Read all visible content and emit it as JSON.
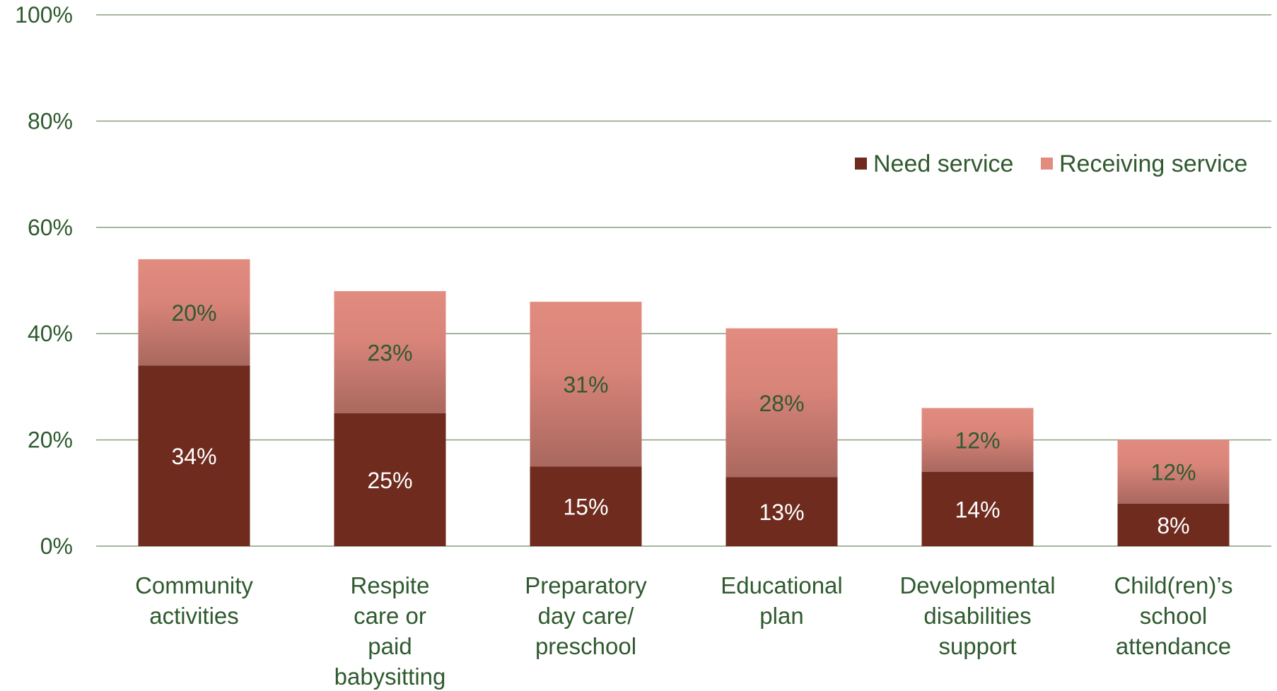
{
  "chart_data": {
    "type": "bar",
    "stacked": true,
    "categories": [
      [
        "Community",
        "activities"
      ],
      [
        "Respite",
        "care or",
        "paid",
        "babysitting"
      ],
      [
        "Preparatory",
        "day care/",
        "preschool"
      ],
      [
        "Educational",
        "plan"
      ],
      [
        "Developmental",
        "disabilities",
        "support"
      ],
      [
        "Child(ren)’s",
        "school",
        "attendance"
      ]
    ],
    "series": [
      {
        "name": "Need service",
        "values": [
          34,
          25,
          15,
          13,
          14,
          8
        ],
        "labels": [
          "34%",
          "25%",
          "15%",
          "13%",
          "14%",
          "8%"
        ],
        "color": "#6e2b1e",
        "label_color": "#ffffff"
      },
      {
        "name": "Receiving service",
        "values": [
          20,
          23,
          31,
          28,
          12,
          12
        ],
        "labels": [
          "20%",
          "23%",
          "31%",
          "28%",
          "12%",
          "12%"
        ],
        "color": "#e28c80",
        "label_color": "#2f5a2f"
      }
    ],
    "ylim": [
      0,
      100
    ],
    "yticks": [
      "0%",
      "20%",
      "40%",
      "60%",
      "80%",
      "100%"
    ],
    "grid": true,
    "legend": "top-right",
    "gridline_color": "#8a9e7e",
    "text_color": "#2f5a2f"
  }
}
